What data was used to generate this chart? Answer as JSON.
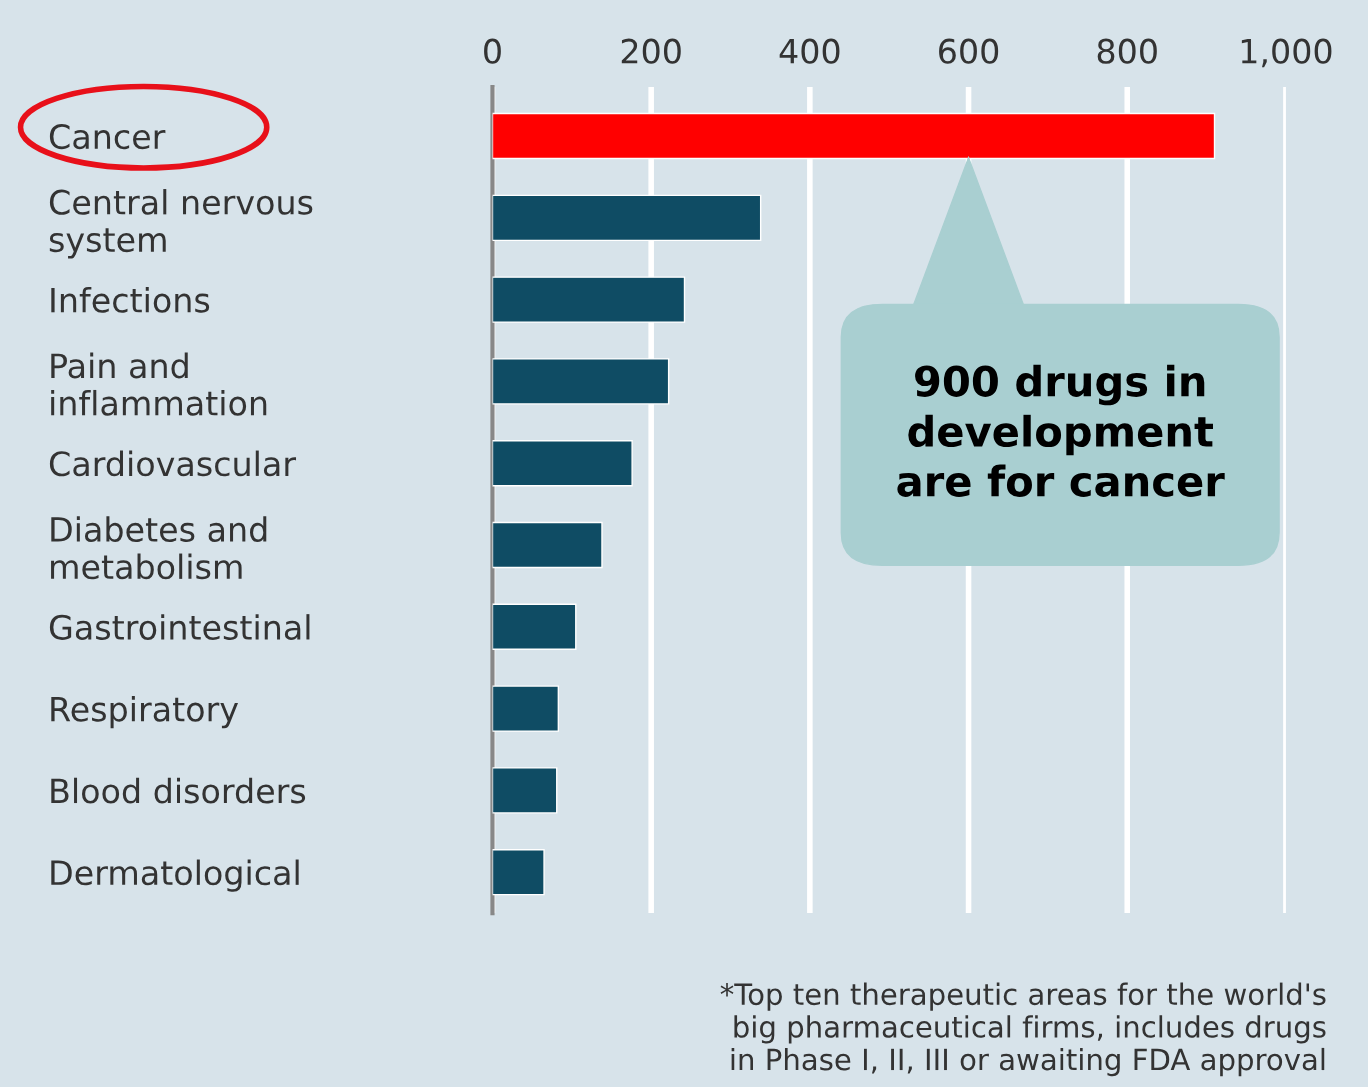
{
  "chart_data": {
    "type": "bar",
    "orientation": "horizontal",
    "categories": [
      "Cancer",
      "Central nervous\nsystem",
      "Infections",
      "Pain and\ninflammation",
      "Cardiovascular",
      "Diabetes and\nmetabolism",
      "Gastrointestinal",
      "Respiratory",
      "Blood disorders",
      "Dermatological"
    ],
    "values": [
      910,
      338,
      242,
      222,
      176,
      138,
      105,
      83,
      81,
      65
    ],
    "colors": [
      "#ff0000",
      "#0f4c64",
      "#0f4c64",
      "#0f4c64",
      "#0f4c64",
      "#0f4c64",
      "#0f4c64",
      "#0f4c64",
      "#0f4c64",
      "#0f4c64"
    ],
    "xlim": [
      0,
      1000
    ],
    "xticks": [
      0,
      200,
      400,
      600,
      800,
      {
        "value": 1000,
        "label": "1,000"
      }
    ],
    "grid": "x",
    "annotations": [
      "900 drugs in\ndevelopment\nare for cancer",
      "*Top ten therapeutic areas for the world's\nbig pharmaceutical firms, includes drugs\nin Phase I, II, III or awaiting FDA approval"
    ]
  }
}
